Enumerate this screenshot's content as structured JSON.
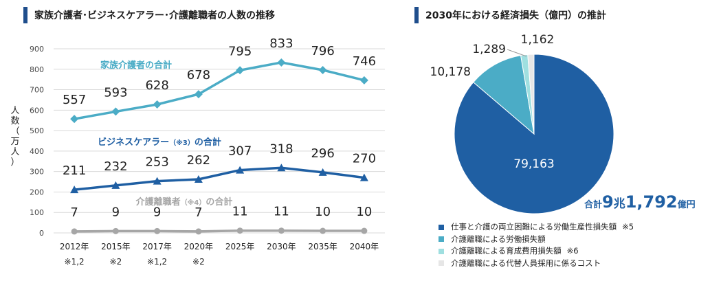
{
  "left_title": "家族介護者･ビジネスケアラー･介護離職者の人数の推移",
  "right_title": "2030年における経済損失（億円）の推計",
  "chart_data": [
    {
      "type": "line",
      "title": "家族介護者･ビジネスケアラー･介護離職者の人数の推移",
      "ylabel": "人数（万人）",
      "ylabel_chars": [
        "人",
        "数",
        "（",
        "万",
        "人",
        "）"
      ],
      "ylim": [
        0,
        900
      ],
      "yticks": [
        0,
        100,
        200,
        300,
        400,
        500,
        600,
        700,
        800,
        900
      ],
      "categories": [
        "2012年",
        "2015年",
        "2017年",
        "2020年",
        "2025年",
        "2030年",
        "2035年",
        "2040年"
      ],
      "category_notes": [
        "※1,2",
        "※2",
        "※1,2",
        "※2",
        "",
        "",
        "",
        ""
      ],
      "grid": true,
      "series": [
        {
          "name": "家族介護者の合計",
          "note": "",
          "color": "#4bacc6",
          "marker": "diamond",
          "values": [
            557,
            593,
            628,
            678,
            795,
            833,
            796,
            746
          ],
          "labels": [
            "557",
            "593",
            "628",
            "678",
            "795",
            "833",
            "796",
            "746"
          ]
        },
        {
          "name": "ビジネスケアラー",
          "note": "（※3）",
          "suffix": "の合計",
          "color": "#1f5fa3",
          "marker": "triangle",
          "values": [
            211,
            232,
            253,
            262,
            307,
            318,
            296,
            270
          ],
          "labels": [
            "211",
            "232",
            "253",
            "262",
            "307",
            "318",
            "296",
            "270"
          ]
        },
        {
          "name": "介護離職者",
          "note": "（※4）",
          "suffix": "の合計",
          "color": "#a6a6a6",
          "marker": "circle",
          "values": [
            7,
            9,
            9,
            7,
            11,
            11,
            10,
            10
          ],
          "labels": [
            "7",
            "9",
            "9",
            "7",
            "11",
            "11",
            "10",
            "10"
          ]
        }
      ]
    },
    {
      "type": "pie",
      "title": "2030年における経済損失（億円）の推計",
      "unit": "億円",
      "slices": [
        {
          "label": "仕事と介護の両立困難による労働生産性損失額",
          "note": "※5",
          "value": 79163,
          "value_label": "79,163",
          "color": "#1f5fa3"
        },
        {
          "label": "介護離職による労働損失額",
          "note": "",
          "value": 10178,
          "value_label": "10,178",
          "color": "#4bacc6"
        },
        {
          "label": "介護離職による育成費用損失額",
          "note": "※6",
          "value": 1289,
          "value_label": "1,289",
          "color": "#9fdfe0"
        },
        {
          "label": "介護離職による代替人員採用に係るコスト",
          "note": "",
          "value": 1162,
          "value_label": "1,162",
          "color": "#e6e6e6"
        }
      ],
      "total": {
        "prefix": "合計",
        "n1": "9",
        "u1": "兆",
        "n2": "1,792",
        "u2": "億円"
      }
    }
  ]
}
